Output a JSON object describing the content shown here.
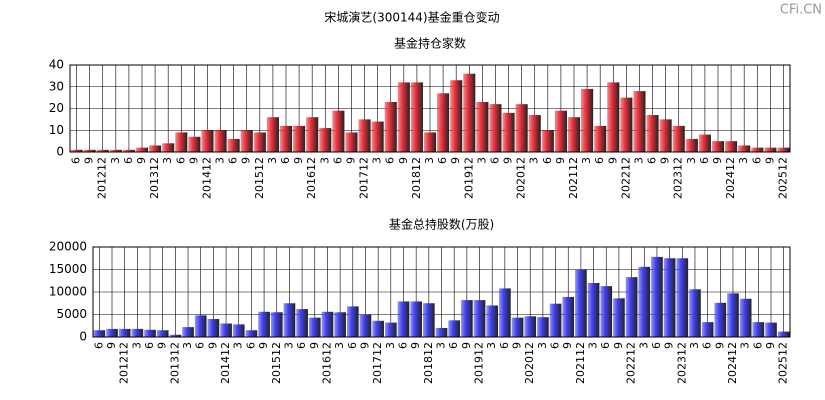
{
  "title": "宋城演艺(300144)基金重仓变动",
  "watermark": "CFi.CN",
  "chart_data": [
    {
      "type": "bar",
      "title": "基金持仓家数",
      "color": "#e8303a",
      "grid": true,
      "categories": [
        "6",
        "9",
        "201212",
        "3",
        "6",
        "9",
        "201312",
        "3",
        "6",
        "9",
        "201412",
        "3",
        "6",
        "9",
        "201512",
        "3",
        "6",
        "9",
        "201612",
        "3",
        "6",
        "9",
        "201712",
        "3",
        "6",
        "9",
        "201812",
        "3",
        "6",
        "9",
        "201912",
        "3",
        "6",
        "9",
        "202012",
        "3",
        "6",
        "9",
        "202112",
        "3",
        "6",
        "9",
        "202212",
        "3",
        "6",
        "9",
        "202312",
        "3",
        "6",
        "9",
        "202412",
        "3",
        "6",
        "9",
        "202512"
      ],
      "values": [
        1,
        1,
        1,
        1,
        1,
        2,
        3,
        4,
        9,
        7,
        10,
        10,
        6,
        10,
        9,
        16,
        12,
        12,
        16,
        11,
        19,
        9,
        15,
        14,
        23,
        32,
        32,
        9,
        27,
        33,
        36,
        23,
        22,
        18,
        22,
        17,
        10,
        19,
        16,
        29,
        12,
        32,
        25,
        28,
        17,
        15,
        12,
        6,
        8,
        5,
        5,
        3,
        2,
        2,
        2
      ],
      "ylim": [
        0,
        40
      ],
      "yticks": [
        0,
        10,
        20,
        30,
        40
      ]
    },
    {
      "type": "bar",
      "title": "基金总持股数(万股)",
      "color": "#4040f0",
      "grid": true,
      "categories": [
        "6",
        "9",
        "201212",
        "3",
        "6",
        "9",
        "201312",
        "3",
        "6",
        "9",
        "201412",
        "3",
        "6",
        "9",
        "201512",
        "3",
        "6",
        "9",
        "201612",
        "3",
        "6",
        "9",
        "201712",
        "3",
        "6",
        "9",
        "201812",
        "3",
        "6",
        "9",
        "201912",
        "3",
        "6",
        "9",
        "202012",
        "3",
        "6",
        "9",
        "202112",
        "3",
        "6",
        "9",
        "202212",
        "3",
        "6",
        "9",
        "202312",
        "3",
        "6",
        "9",
        "202412",
        "3",
        "6",
        "9",
        "202512"
      ],
      "values": [
        1500,
        1800,
        1800,
        1800,
        1600,
        1500,
        500,
        2200,
        4800,
        4000,
        3000,
        2800,
        1500,
        5600,
        5500,
        7500,
        6200,
        4300,
        5600,
        5500,
        6800,
        5000,
        3600,
        3200,
        7900,
        7900,
        7500,
        2000,
        3700,
        8200,
        8200,
        7000,
        10800,
        4300,
        4600,
        4400,
        7400,
        8900,
        15000,
        12000,
        11300,
        8600,
        13300,
        15600,
        17800,
        17500,
        17500,
        10600,
        3300,
        7600,
        9700,
        8500,
        3300,
        3200,
        1200
      ],
      "ylim": [
        0,
        20000
      ],
      "yticks": [
        0,
        5000,
        10000,
        15000,
        20000
      ]
    }
  ]
}
